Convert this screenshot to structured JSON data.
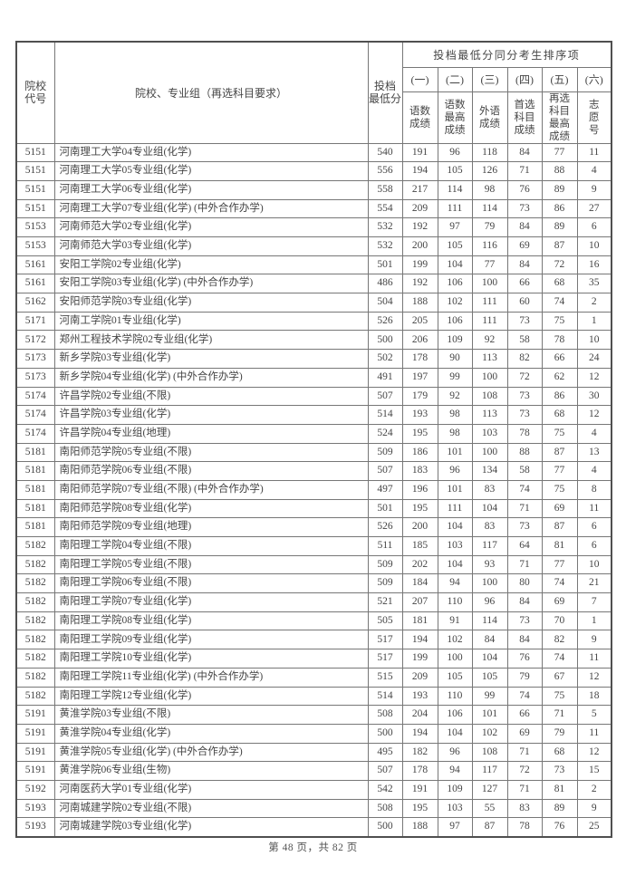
{
  "page": {
    "footer": "第 48 页，共 82 页"
  },
  "table": {
    "header": {
      "col_code": "院校\n代号",
      "col_group": "院校、专业组（再选科目要求）",
      "col_score": "投档\n最低分",
      "tiebreak_title": "投档最低分同分考生排序项",
      "tiebreak_cols": [
        {
          "num": "(一)",
          "label": "语数\n成绩"
        },
        {
          "num": "(二)",
          "label": "语数\n最高\n成绩"
        },
        {
          "num": "(三)",
          "label": "外语\n成绩"
        },
        {
          "num": "(四)",
          "label": "首选\n科目\n成绩"
        },
        {
          "num": "(五)",
          "label": "再选\n科目\n最高\n成绩"
        },
        {
          "num": "(六)",
          "label": "志\n愿\n号"
        }
      ]
    },
    "rows": [
      {
        "code": "5151",
        "name": "河南理工大学04专业组(化学)",
        "score": 540,
        "sort": [
          191,
          96,
          118,
          84,
          77,
          11
        ]
      },
      {
        "code": "5151",
        "name": "河南理工大学05专业组(化学)",
        "score": 556,
        "sort": [
          194,
          105,
          126,
          71,
          88,
          4
        ]
      },
      {
        "code": "5151",
        "name": "河南理工大学06专业组(化学)",
        "score": 558,
        "sort": [
          217,
          114,
          98,
          76,
          89,
          9
        ]
      },
      {
        "code": "5151",
        "name": "河南理工大学07专业组(化学) (中外合作办学)",
        "score": 554,
        "sort": [
          209,
          111,
          114,
          73,
          86,
          27
        ]
      },
      {
        "code": "5153",
        "name": "河南师范大学02专业组(化学)",
        "score": 532,
        "sort": [
          192,
          97,
          79,
          84,
          89,
          6
        ]
      },
      {
        "code": "5153",
        "name": "河南师范大学03专业组(化学)",
        "score": 532,
        "sort": [
          200,
          105,
          116,
          69,
          87,
          10
        ]
      },
      {
        "code": "5161",
        "name": "安阳工学院02专业组(化学)",
        "score": 501,
        "sort": [
          199,
          104,
          77,
          84,
          72,
          16
        ]
      },
      {
        "code": "5161",
        "name": "安阳工学院03专业组(化学) (中外合作办学)",
        "score": 486,
        "sort": [
          192,
          106,
          100,
          66,
          68,
          35
        ]
      },
      {
        "code": "5162",
        "name": "安阳师范学院03专业组(化学)",
        "score": 504,
        "sort": [
          188,
          102,
          111,
          60,
          74,
          2
        ]
      },
      {
        "code": "5171",
        "name": "河南工学院01专业组(化学)",
        "score": 526,
        "sort": [
          205,
          106,
          111,
          73,
          75,
          1
        ]
      },
      {
        "code": "5172",
        "name": "郑州工程技术学院02专业组(化学)",
        "score": 500,
        "sort": [
          206,
          109,
          92,
          58,
          78,
          10
        ]
      },
      {
        "code": "5173",
        "name": "新乡学院03专业组(化学)",
        "score": 502,
        "sort": [
          178,
          90,
          113,
          82,
          66,
          24
        ]
      },
      {
        "code": "5173",
        "name": "新乡学院04专业组(化学) (中外合作办学)",
        "score": 491,
        "sort": [
          197,
          99,
          100,
          72,
          62,
          12
        ]
      },
      {
        "code": "5174",
        "name": "许昌学院02专业组(不限)",
        "score": 507,
        "sort": [
          179,
          92,
          108,
          73,
          86,
          30
        ]
      },
      {
        "code": "5174",
        "name": "许昌学院03专业组(化学)",
        "score": 514,
        "sort": [
          193,
          98,
          113,
          73,
          68,
          12
        ]
      },
      {
        "code": "5174",
        "name": "许昌学院04专业组(地理)",
        "score": 524,
        "sort": [
          195,
          98,
          103,
          78,
          75,
          4
        ]
      },
      {
        "code": "5181",
        "name": "南阳师范学院05专业组(不限)",
        "score": 509,
        "sort": [
          186,
          101,
          100,
          88,
          87,
          13
        ]
      },
      {
        "code": "5181",
        "name": "南阳师范学院06专业组(不限)",
        "score": 507,
        "sort": [
          183,
          96,
          134,
          58,
          77,
          4
        ]
      },
      {
        "code": "5181",
        "name": "南阳师范学院07专业组(不限) (中外合作办学)",
        "score": 497,
        "sort": [
          196,
          101,
          83,
          74,
          75,
          8
        ]
      },
      {
        "code": "5181",
        "name": "南阳师范学院08专业组(化学)",
        "score": 501,
        "sort": [
          195,
          111,
          104,
          71,
          69,
          11
        ]
      },
      {
        "code": "5181",
        "name": "南阳师范学院09专业组(地理)",
        "score": 526,
        "sort": [
          200,
          104,
          83,
          73,
          87,
          6
        ]
      },
      {
        "code": "5182",
        "name": "南阳理工学院04专业组(不限)",
        "score": 511,
        "sort": [
          185,
          103,
          117,
          64,
          81,
          6
        ]
      },
      {
        "code": "5182",
        "name": "南阳理工学院05专业组(不限)",
        "score": 509,
        "sort": [
          202,
          104,
          93,
          71,
          77,
          10
        ]
      },
      {
        "code": "5182",
        "name": "南阳理工学院06专业组(不限)",
        "score": 509,
        "sort": [
          184,
          94,
          100,
          80,
          74,
          21
        ]
      },
      {
        "code": "5182",
        "name": "南阳理工学院07专业组(化学)",
        "score": 521,
        "sort": [
          207,
          110,
          96,
          84,
          69,
          7
        ]
      },
      {
        "code": "5182",
        "name": "南阳理工学院08专业组(化学)",
        "score": 505,
        "sort": [
          181,
          91,
          114,
          73,
          70,
          1
        ]
      },
      {
        "code": "5182",
        "name": "南阳理工学院09专业组(化学)",
        "score": 517,
        "sort": [
          194,
          102,
          84,
          84,
          82,
          9
        ]
      },
      {
        "code": "5182",
        "name": "南阳理工学院10专业组(化学)",
        "score": 517,
        "sort": [
          199,
          100,
          104,
          76,
          74,
          11
        ]
      },
      {
        "code": "5182",
        "name": "南阳理工学院11专业组(化学) (中外合作办学)",
        "score": 515,
        "sort": [
          209,
          105,
          105,
          79,
          67,
          12
        ]
      },
      {
        "code": "5182",
        "name": "南阳理工学院12专业组(化学)",
        "score": 514,
        "sort": [
          193,
          110,
          99,
          74,
          75,
          18
        ]
      },
      {
        "code": "5191",
        "name": "黄淮学院03专业组(不限)",
        "score": 508,
        "sort": [
          204,
          106,
          101,
          66,
          71,
          5
        ]
      },
      {
        "code": "5191",
        "name": "黄淮学院04专业组(化学)",
        "score": 500,
        "sort": [
          194,
          104,
          102,
          69,
          79,
          11
        ]
      },
      {
        "code": "5191",
        "name": "黄淮学院05专业组(化学) (中外合作办学)",
        "score": 495,
        "sort": [
          182,
          96,
          108,
          71,
          68,
          12
        ]
      },
      {
        "code": "5191",
        "name": "黄淮学院06专业组(生物)",
        "score": 507,
        "sort": [
          178,
          94,
          117,
          72,
          73,
          15
        ]
      },
      {
        "code": "5192",
        "name": "河南医药大学01专业组(化学)",
        "score": 542,
        "sort": [
          191,
          109,
          127,
          71,
          81,
          2
        ]
      },
      {
        "code": "5193",
        "name": "河南城建学院02专业组(不限)",
        "score": 508,
        "sort": [
          195,
          103,
          55,
          83,
          89,
          9
        ]
      },
      {
        "code": "5193",
        "name": "河南城建学院03专业组(化学)",
        "score": 500,
        "sort": [
          188,
          97,
          87,
          78,
          76,
          25
        ]
      }
    ]
  }
}
